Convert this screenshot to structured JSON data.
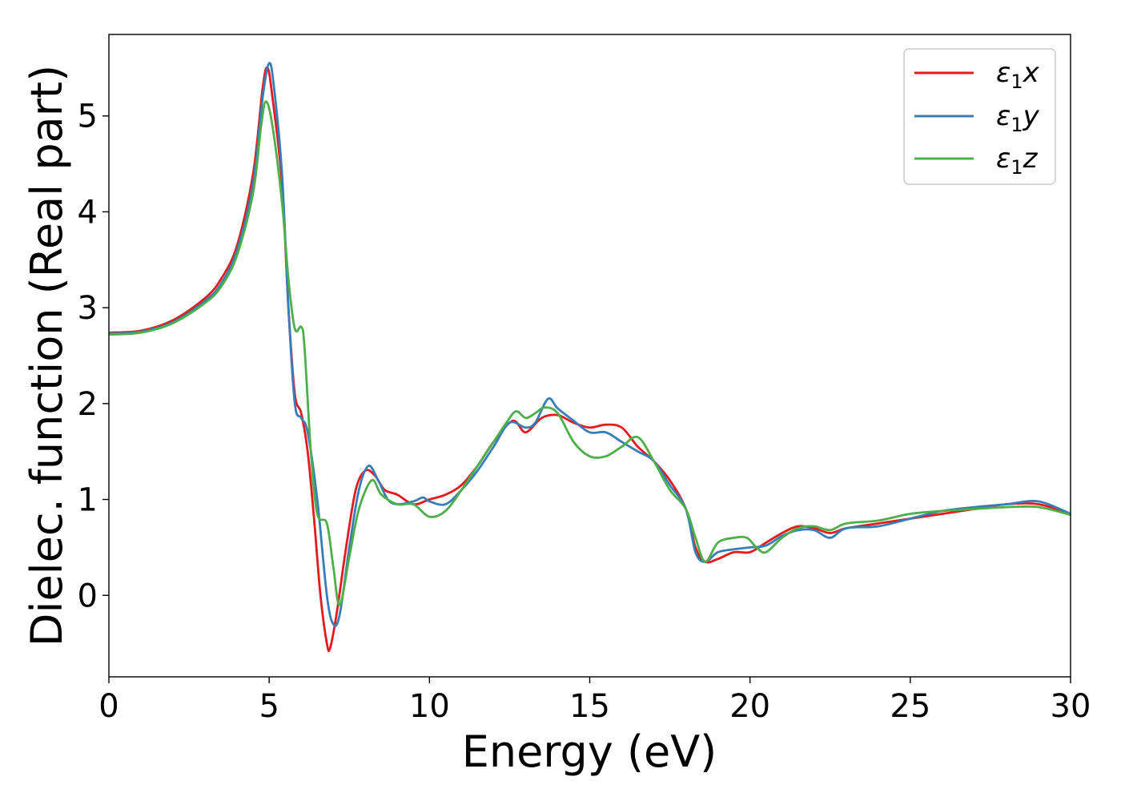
{
  "chart_data": {
    "type": "line",
    "xlabel": "Energy (eV)",
    "ylabel": "Dielec. function (Real part)",
    "xlim": [
      0,
      30
    ],
    "ylim": [
      -0.85,
      5.85
    ],
    "xticks": [
      0,
      5,
      10,
      15,
      20,
      25,
      30
    ],
    "xtick_labels": [
      "0",
      "5",
      "10",
      "15",
      "20",
      "25",
      "30"
    ],
    "yticks": [
      0,
      1,
      2,
      3,
      4,
      5
    ],
    "ytick_labels": [
      "0",
      "1",
      "2",
      "3",
      "4",
      "5"
    ],
    "grid": false,
    "legend_position": "top-right",
    "series": [
      {
        "name": "ε1x",
        "legend_base": "ε",
        "legend_sub": "1",
        "legend_var": "x",
        "color": "#e41a1c",
        "points": [
          [
            0,
            2.74
          ],
          [
            1,
            2.76
          ],
          [
            2,
            2.87
          ],
          [
            3,
            3.1
          ],
          [
            3.5,
            3.3
          ],
          [
            4,
            3.65
          ],
          [
            4.5,
            4.4
          ],
          [
            4.8,
            5.3
          ],
          [
            4.95,
            5.5
          ],
          [
            5.1,
            5.2
          ],
          [
            5.4,
            4.3
          ],
          [
            5.6,
            3.0
          ],
          [
            5.8,
            2.1
          ],
          [
            6.0,
            1.9
          ],
          [
            6.2,
            1.5
          ],
          [
            6.4,
            0.8
          ],
          [
            6.6,
            0.0
          ],
          [
            6.8,
            -0.5
          ],
          [
            6.9,
            -0.55
          ],
          [
            7.1,
            -0.2
          ],
          [
            7.4,
            0.5
          ],
          [
            7.7,
            1.1
          ],
          [
            8.0,
            1.3
          ],
          [
            8.3,
            1.25
          ],
          [
            8.6,
            1.1
          ],
          [
            9.0,
            1.05
          ],
          [
            9.5,
            0.95
          ],
          [
            10.0,
            1.0
          ],
          [
            10.5,
            1.05
          ],
          [
            11.0,
            1.15
          ],
          [
            11.5,
            1.35
          ],
          [
            12.0,
            1.6
          ],
          [
            12.6,
            1.82
          ],
          [
            13.0,
            1.7
          ],
          [
            13.5,
            1.85
          ],
          [
            14.0,
            1.88
          ],
          [
            14.5,
            1.8
          ],
          [
            15.0,
            1.75
          ],
          [
            15.5,
            1.78
          ],
          [
            16.0,
            1.75
          ],
          [
            16.5,
            1.55
          ],
          [
            17.0,
            1.4
          ],
          [
            17.5,
            1.2
          ],
          [
            18.0,
            0.9
          ],
          [
            18.3,
            0.5
          ],
          [
            18.6,
            0.35
          ],
          [
            19.0,
            0.38
          ],
          [
            19.5,
            0.45
          ],
          [
            20.0,
            0.45
          ],
          [
            20.5,
            0.55
          ],
          [
            21.0,
            0.65
          ],
          [
            21.5,
            0.72
          ],
          [
            22.0,
            0.7
          ],
          [
            22.5,
            0.65
          ],
          [
            23.0,
            0.7
          ],
          [
            24.0,
            0.75
          ],
          [
            25.0,
            0.8
          ],
          [
            26.0,
            0.85
          ],
          [
            27.0,
            0.9
          ],
          [
            28.0,
            0.95
          ],
          [
            29.0,
            0.95
          ],
          [
            30.0,
            0.85
          ]
        ]
      },
      {
        "name": "ε1y",
        "legend_base": "ε",
        "legend_sub": "1",
        "legend_var": "y",
        "color": "#377eb8",
        "points": [
          [
            0,
            2.73
          ],
          [
            1,
            2.75
          ],
          [
            2,
            2.85
          ],
          [
            3,
            3.07
          ],
          [
            3.5,
            3.25
          ],
          [
            4,
            3.6
          ],
          [
            4.5,
            4.3
          ],
          [
            4.8,
            5.2
          ],
          [
            5.0,
            5.55
          ],
          [
            5.15,
            5.3
          ],
          [
            5.4,
            4.4
          ],
          [
            5.6,
            3.0
          ],
          [
            5.8,
            2.0
          ],
          [
            6.0,
            1.85
          ],
          [
            6.2,
            1.7
          ],
          [
            6.5,
            1.0
          ],
          [
            6.8,
            0.0
          ],
          [
            7.0,
            -0.3
          ],
          [
            7.2,
            -0.2
          ],
          [
            7.5,
            0.5
          ],
          [
            7.8,
            1.1
          ],
          [
            8.1,
            1.35
          ],
          [
            8.4,
            1.2
          ],
          [
            8.7,
            1.0
          ],
          [
            9.0,
            0.95
          ],
          [
            9.5,
            0.98
          ],
          [
            9.8,
            1.02
          ],
          [
            10.0,
            0.98
          ],
          [
            10.5,
            0.95
          ],
          [
            11.0,
            1.1
          ],
          [
            11.5,
            1.3
          ],
          [
            12.0,
            1.55
          ],
          [
            12.5,
            1.8
          ],
          [
            13.0,
            1.75
          ],
          [
            13.3,
            1.8
          ],
          [
            13.7,
            2.05
          ],
          [
            14.0,
            1.95
          ],
          [
            14.5,
            1.82
          ],
          [
            15.0,
            1.7
          ],
          [
            15.5,
            1.7
          ],
          [
            16.0,
            1.6
          ],
          [
            16.5,
            1.5
          ],
          [
            17.0,
            1.4
          ],
          [
            17.5,
            1.15
          ],
          [
            18.0,
            0.9
          ],
          [
            18.3,
            0.45
          ],
          [
            18.6,
            0.35
          ],
          [
            19.0,
            0.45
          ],
          [
            19.5,
            0.48
          ],
          [
            20.0,
            0.5
          ],
          [
            20.5,
            0.52
          ],
          [
            21.0,
            0.62
          ],
          [
            21.5,
            0.68
          ],
          [
            22.0,
            0.68
          ],
          [
            22.5,
            0.6
          ],
          [
            23.0,
            0.7
          ],
          [
            24.0,
            0.72
          ],
          [
            25.0,
            0.8
          ],
          [
            26.0,
            0.88
          ],
          [
            27.0,
            0.92
          ],
          [
            28.0,
            0.95
          ],
          [
            29.0,
            0.98
          ],
          [
            30.0,
            0.85
          ]
        ]
      },
      {
        "name": "ε1z",
        "legend_base": "ε",
        "legend_sub": "1",
        "legend_var": "z",
        "color": "#4daf4a",
        "points": [
          [
            0,
            2.72
          ],
          [
            1,
            2.74
          ],
          [
            2,
            2.84
          ],
          [
            3,
            3.05
          ],
          [
            3.5,
            3.22
          ],
          [
            4,
            3.55
          ],
          [
            4.5,
            4.2
          ],
          [
            4.75,
            4.9
          ],
          [
            4.9,
            5.15
          ],
          [
            5.1,
            4.9
          ],
          [
            5.4,
            4.1
          ],
          [
            5.6,
            3.3
          ],
          [
            5.8,
            2.78
          ],
          [
            6.0,
            2.8
          ],
          [
            6.1,
            2.6
          ],
          [
            6.3,
            1.5
          ],
          [
            6.5,
            0.85
          ],
          [
            6.8,
            0.75
          ],
          [
            7.0,
            0.3
          ],
          [
            7.2,
            -0.1
          ],
          [
            7.5,
            0.4
          ],
          [
            7.8,
            0.9
          ],
          [
            8.2,
            1.2
          ],
          [
            8.5,
            1.05
          ],
          [
            9.0,
            0.95
          ],
          [
            9.5,
            0.95
          ],
          [
            10.0,
            0.82
          ],
          [
            10.5,
            0.88
          ],
          [
            11.0,
            1.1
          ],
          [
            11.5,
            1.35
          ],
          [
            12.0,
            1.6
          ],
          [
            12.4,
            1.8
          ],
          [
            12.7,
            1.92
          ],
          [
            13.0,
            1.85
          ],
          [
            13.3,
            1.9
          ],
          [
            13.6,
            1.96
          ],
          [
            14.0,
            1.9
          ],
          [
            14.5,
            1.6
          ],
          [
            15.0,
            1.45
          ],
          [
            15.5,
            1.45
          ],
          [
            16.0,
            1.55
          ],
          [
            16.5,
            1.65
          ],
          [
            17.0,
            1.4
          ],
          [
            17.5,
            1.1
          ],
          [
            18.0,
            0.9
          ],
          [
            18.3,
            0.6
          ],
          [
            18.6,
            0.35
          ],
          [
            19.0,
            0.55
          ],
          [
            19.5,
            0.6
          ],
          [
            19.9,
            0.6
          ],
          [
            20.2,
            0.5
          ],
          [
            20.5,
            0.45
          ],
          [
            21.0,
            0.6
          ],
          [
            21.5,
            0.7
          ],
          [
            22.0,
            0.72
          ],
          [
            22.5,
            0.68
          ],
          [
            23.0,
            0.75
          ],
          [
            24.0,
            0.78
          ],
          [
            25.0,
            0.85
          ],
          [
            26.0,
            0.88
          ],
          [
            27.0,
            0.9
          ],
          [
            28.0,
            0.92
          ],
          [
            29.0,
            0.92
          ],
          [
            30.0,
            0.84
          ]
        ]
      }
    ]
  }
}
